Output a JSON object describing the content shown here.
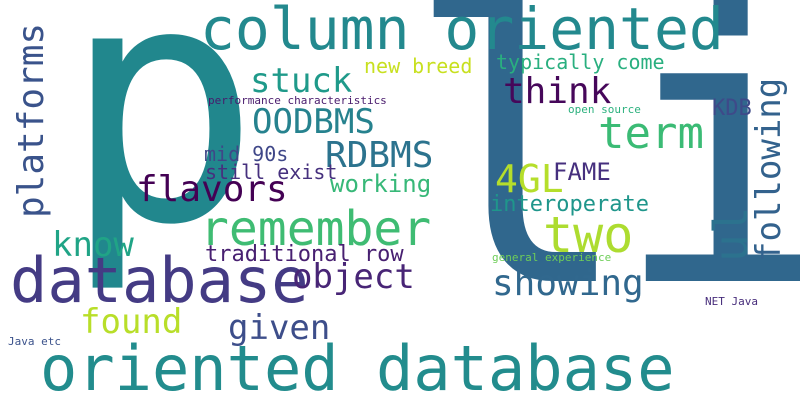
{
  "words": {
    "li": {
      "text": "li",
      "color": "#30678d"
    },
    "p": {
      "text": "p",
      "color": "#21878d"
    },
    "column_oriented": {
      "text": "column oriented",
      "color": "#23898e"
    },
    "oriented_database": {
      "text": "oriented database",
      "color": "#228c8d"
    },
    "database": {
      "text": "database",
      "color": "#443b84"
    },
    "remember": {
      "text": "remember",
      "color": "#3fbc73"
    },
    "two": {
      "text": "two",
      "color": "#addc30"
    },
    "platforms": {
      "text": "platforms",
      "color": "#3a538b"
    },
    "term": {
      "text": "term",
      "color": "#3bbb75"
    },
    "flavors": {
      "text": "flavors",
      "color": "#440154"
    },
    "object": {
      "text": "object",
      "color": "#482576"
    },
    "showing": {
      "text": "showing",
      "color": "#31688e"
    },
    "rdbms": {
      "text": "RDBMS",
      "color": "#2c738e"
    },
    "oodbms": {
      "text": "OODBMS",
      "color": "#26828e"
    },
    "think": {
      "text": "think",
      "color": "#46075a"
    },
    "stuck": {
      "text": "stuck",
      "color": "#1f9a8a"
    },
    "know": {
      "text": "know",
      "color": "#20a486"
    },
    "found": {
      "text": "found",
      "color": "#b8de29"
    },
    "given": {
      "text": "given",
      "color": "#3d4e8a"
    },
    "ul": {
      "text": "ul",
      "color": "#2c728e"
    },
    "following": {
      "text": "following",
      "color": "#33628d"
    },
    "4gl": {
      "text": "4GL",
      "color": "#b5de2b"
    },
    "fame": {
      "text": "FAME",
      "color": "#462f7e"
    },
    "working": {
      "text": "working",
      "color": "#37b878"
    },
    "interoperate": {
      "text": "interoperate",
      "color": "#1f968b"
    },
    "traditional_row": {
      "text": "traditional row",
      "color": "#482071"
    },
    "mid_90s": {
      "text": "mid 90s",
      "color": "#3f4788"
    },
    "still_exist": {
      "text": "still exist",
      "color": "#46307e"
    },
    "new_breed": {
      "text": "new breed",
      "color": "#c8e020"
    },
    "typically_come": {
      "text": "typically come",
      "color": "#29af7f"
    },
    "kdb": {
      "text": "KDB",
      "color": "#3e4a89"
    },
    "performance_characteristics": {
      "text": "performance characteristics",
      "color": "#481a6c"
    },
    "open_source": {
      "text": "open source",
      "color": "#2cb17e"
    },
    "general_experience": {
      "text": "general experience",
      "color": "#6ece58"
    },
    "net_java": {
      "text": "NET Java",
      "color": "#472d7b"
    },
    "java_etc": {
      "text": "Java etc",
      "color": "#3b528b"
    }
  }
}
